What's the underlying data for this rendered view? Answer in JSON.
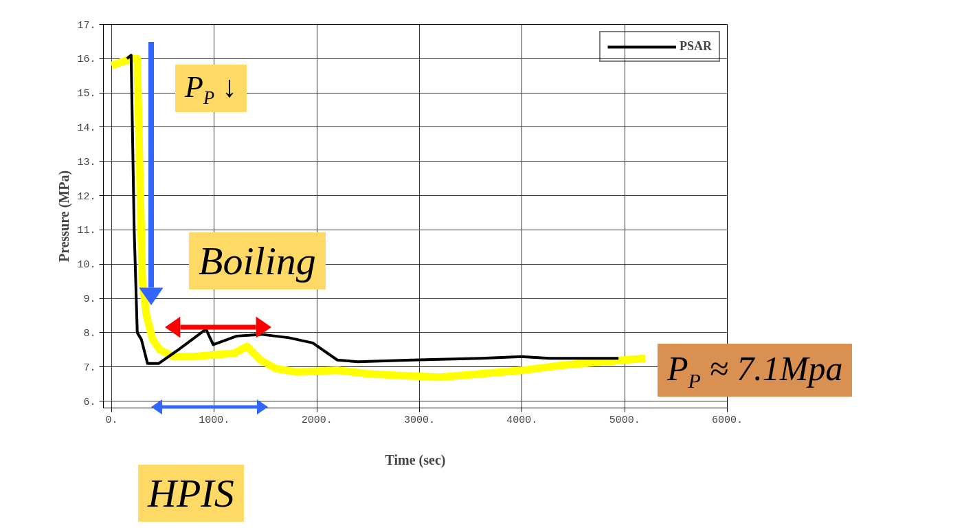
{
  "chart_data": {
    "type": "line",
    "xlabel": "Time (sec)",
    "ylabel": "Pressure (MPa)",
    "xlim": [
      -80,
      6000
    ],
    "ylim": [
      5.8,
      17.0
    ],
    "xticks": [
      {
        "value": 0,
        "label": "0."
      },
      {
        "value": 1000,
        "label": "1000."
      },
      {
        "value": 2000,
        "label": "2000."
      },
      {
        "value": 3000,
        "label": "3000."
      },
      {
        "value": 4000,
        "label": "4000."
      },
      {
        "value": 5000,
        "label": "5000."
      },
      {
        "value": 6000,
        "label": "6000."
      }
    ],
    "yticks": [
      {
        "value": 6,
        "label": "6."
      },
      {
        "value": 7,
        "label": "7."
      },
      {
        "value": 8,
        "label": "8."
      },
      {
        "value": 9,
        "label": "9."
      },
      {
        "value": 10,
        "label": "10."
      },
      {
        "value": 11,
        "label": "11."
      },
      {
        "value": 12,
        "label": "12."
      },
      {
        "value": 13,
        "label": "13."
      },
      {
        "value": 14,
        "label": "14."
      },
      {
        "value": 15,
        "label": "15."
      },
      {
        "value": 16,
        "label": "16."
      },
      {
        "value": 17,
        "label": "17."
      }
    ],
    "grid": true,
    "legend": "top right",
    "line_style": "solid",
    "series": [
      {
        "color": "#ffff00",
        "x": [
          0,
          100,
          200,
          250,
          280,
          300,
          340,
          400,
          470,
          600,
          800,
          1000,
          1200,
          1320,
          1450,
          1600,
          1800,
          2200,
          2500,
          2800,
          3200,
          3600,
          4000,
          4400,
          4800,
          5200
        ],
        "values": [
          15.8,
          15.9,
          16.0,
          16.0,
          12.0,
          9.5,
          8.5,
          7.8,
          7.5,
          7.3,
          7.3,
          7.35,
          7.4,
          7.6,
          7.2,
          6.95,
          6.85,
          6.9,
          6.8,
          6.75,
          6.7,
          6.8,
          6.9,
          7.05,
          7.15,
          7.25
        ]
      },
      {
        "name": "PSAR",
        "color": "#000000",
        "x": [
          150,
          190,
          220,
          250,
          290,
          350,
          460,
          650,
          920,
          990,
          1220,
          1460,
          1730,
          1960,
          2200,
          2400,
          2930,
          3600,
          4000,
          4270,
          4940
        ],
        "values": [
          16.0,
          16.1,
          11.0,
          8.0,
          7.8,
          7.1,
          7.1,
          7.5,
          8.1,
          7.65,
          7.9,
          7.95,
          7.85,
          7.7,
          7.2,
          7.15,
          7.2,
          7.25,
          7.3,
          7.25,
          7.25
        ]
      }
    ],
    "annotations": [
      "P$_{P}$ ↓",
      "Boiling",
      "P$_{P}$ ≈ 7.1Mpa",
      "HPIS"
    ]
  }
}
